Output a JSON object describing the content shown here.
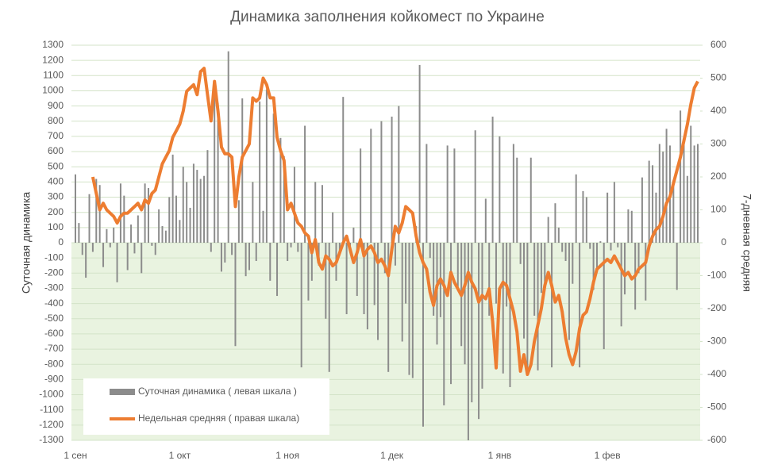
{
  "chart_data": {
    "type": "bar-line",
    "title": "Динамика заполнения койкомест по Украине",
    "ylabel": "Суточная динамика",
    "y2label": "7-дневная средняя",
    "categories": [
      "1 сен",
      null,
      null,
      null,
      null,
      null,
      null,
      null,
      null,
      null,
      null,
      null,
      null,
      null,
      null,
      null,
      null,
      null,
      null,
      null,
      null,
      null,
      null,
      null,
      null,
      null,
      null,
      null,
      null,
      null,
      "1 окт",
      null,
      null,
      null,
      null,
      null,
      null,
      null,
      null,
      null,
      null,
      null,
      null,
      null,
      null,
      null,
      null,
      null,
      null,
      null,
      null,
      null,
      null,
      null,
      null,
      null,
      null,
      null,
      null,
      null,
      null,
      "1 ноя",
      null,
      null,
      null,
      null,
      null,
      null,
      null,
      null,
      null,
      null,
      null,
      null,
      null,
      null,
      null,
      null,
      null,
      null,
      null,
      null,
      null,
      null,
      null,
      null,
      null,
      null,
      null,
      null,
      null,
      "1 дек",
      null,
      null,
      null,
      null,
      null,
      null,
      null,
      null,
      null,
      null,
      null,
      null,
      null,
      null,
      null,
      null,
      null,
      null,
      null,
      null,
      null,
      null,
      null,
      null,
      null,
      null,
      null,
      null,
      null,
      null,
      "1 янв",
      null,
      null,
      null,
      null,
      null,
      null,
      null,
      null,
      null,
      null,
      null,
      null,
      null,
      null,
      null,
      null,
      null,
      null,
      null,
      null,
      null,
      null,
      null,
      null,
      null,
      null,
      null,
      null,
      null,
      null,
      "1 фев",
      null,
      null,
      null,
      null,
      null,
      null,
      null,
      null,
      null,
      null,
      null,
      null,
      null,
      null,
      null,
      null,
      null,
      null,
      null,
      null,
      null,
      null,
      null,
      null,
      null,
      null
    ],
    "series": [
      {
        "name": "Суточная динамика ( левая шкала )",
        "color": "#8c8c8c",
        "axis": "y",
        "kind": "bar",
        "values": [
          450,
          130,
          -80,
          -230,
          320,
          -60,
          420,
          380,
          -160,
          90,
          -30,
          100,
          -260,
          390,
          310,
          -180,
          120,
          -70,
          180,
          -200,
          390,
          360,
          -20,
          -80,
          220,
          110,
          80,
          300,
          580,
          310,
          150,
          500,
          400,
          230,
          520,
          480,
          420,
          440,
          610,
          -60,
          990,
          920,
          -190,
          -130,
          1260,
          -80,
          -680,
          280,
          950,
          -220,
          -180,
          400,
          -120,
          930,
          210,
          1010,
          -250,
          850,
          -350,
          690,
          570,
          -120,
          -30,
          500,
          -60,
          -820,
          770,
          -380,
          -250,
          400,
          -150,
          380,
          -500,
          -850,
          200,
          -250,
          -80,
          960,
          -470,
          -60,
          100,
          -350,
          620,
          -470,
          -570,
          750,
          -410,
          -640,
          800,
          -200,
          -850,
          830,
          -150,
          900,
          -650,
          -400,
          -870,
          -890,
          110,
          1170,
          -1210,
          650,
          -100,
          -480,
          -670,
          -490,
          -1070,
          640,
          -930,
          620,
          -300,
          -680,
          -800,
          -1300,
          -1050,
          740,
          -1160,
          -960,
          290,
          -480,
          830,
          -400,
          700,
          -860,
          -420,
          -950,
          650,
          560,
          -140,
          -630,
          -830,
          560,
          -480,
          -840,
          -330,
          -300,
          170,
          -820,
          260,
          100,
          -60,
          -120,
          -640,
          -270,
          450,
          -820,
          340,
          300,
          -40,
          -310,
          -170,
          10,
          -700,
          330,
          -50,
          400,
          -30,
          -550,
          -340,
          220,
          210,
          -440,
          -200,
          430,
          -380,
          540,
          510,
          330,
          650,
          600,
          750,
          640,
          410,
          -310,
          870,
          680,
          440,
          770,
          640,
          650
        ]
      },
      {
        "name": "Недельная средняя ( правая шкала)",
        "color": "#ed7d31",
        "axis": "y2",
        "kind": "line",
        "values": [
          null,
          null,
          null,
          null,
          null,
          200,
          150,
          100,
          120,
          100,
          90,
          80,
          60,
          80,
          90,
          90,
          100,
          110,
          120,
          100,
          130,
          120,
          150,
          160,
          200,
          240,
          260,
          280,
          320,
          340,
          360,
          400,
          460,
          470,
          480,
          450,
          520,
          530,
          450,
          370,
          490,
          400,
          290,
          270,
          270,
          260,
          110,
          200,
          260,
          280,
          300,
          440,
          430,
          440,
          500,
          480,
          440,
          440,
          320,
          280,
          250,
          100,
          120,
          90,
          60,
          50,
          30,
          20,
          -30,
          10,
          -60,
          -80,
          -40,
          -50,
          -70,
          -60,
          -30,
          0,
          20,
          -20,
          -60,
          -30,
          10,
          -40,
          -20,
          -10,
          -30,
          -60,
          -50,
          -70,
          -100,
          -20,
          50,
          30,
          60,
          110,
          100,
          90,
          20,
          -30,
          -60,
          -80,
          -150,
          -190,
          -130,
          -110,
          -130,
          -160,
          -90,
          -120,
          -140,
          -160,
          -130,
          -90,
          -120,
          -140,
          -180,
          -160,
          -170,
          -140,
          -240,
          -380,
          -140,
          -120,
          -130,
          -170,
          -210,
          -270,
          -390,
          -340,
          -400,
          -370,
          -300,
          -250,
          -200,
          -130,
          -90,
          -130,
          -180,
          -160,
          -210,
          -290,
          -340,
          -370,
          -330,
          -260,
          -220,
          -210,
          -170,
          -120,
          -80,
          -70,
          -60,
          -50,
          -60,
          -40,
          -60,
          -80,
          -100,
          -90,
          -110,
          -100,
          -80,
          -70,
          -60,
          -10,
          20,
          40,
          50,
          80,
          120,
          140,
          180,
          220,
          260,
          310,
          360,
          420,
          470,
          490
        ]
      }
    ],
    "ylim": [
      -1300,
      1300
    ],
    "yticks": [
      -1300,
      -1200,
      -1100,
      -1000,
      -900,
      -800,
      -700,
      -600,
      -500,
      -400,
      -300,
      -200,
      -100,
      0,
      100,
      200,
      300,
      400,
      500,
      600,
      700,
      800,
      900,
      1000,
      1100,
      1200,
      1300
    ],
    "y2lim": [
      -600,
      600
    ],
    "y2ticks": [
      -600,
      -500,
      -400,
      -300,
      -200,
      -100,
      0,
      100,
      200,
      300,
      400,
      500,
      600
    ],
    "grid": true,
    "legend": "bottom-left"
  }
}
